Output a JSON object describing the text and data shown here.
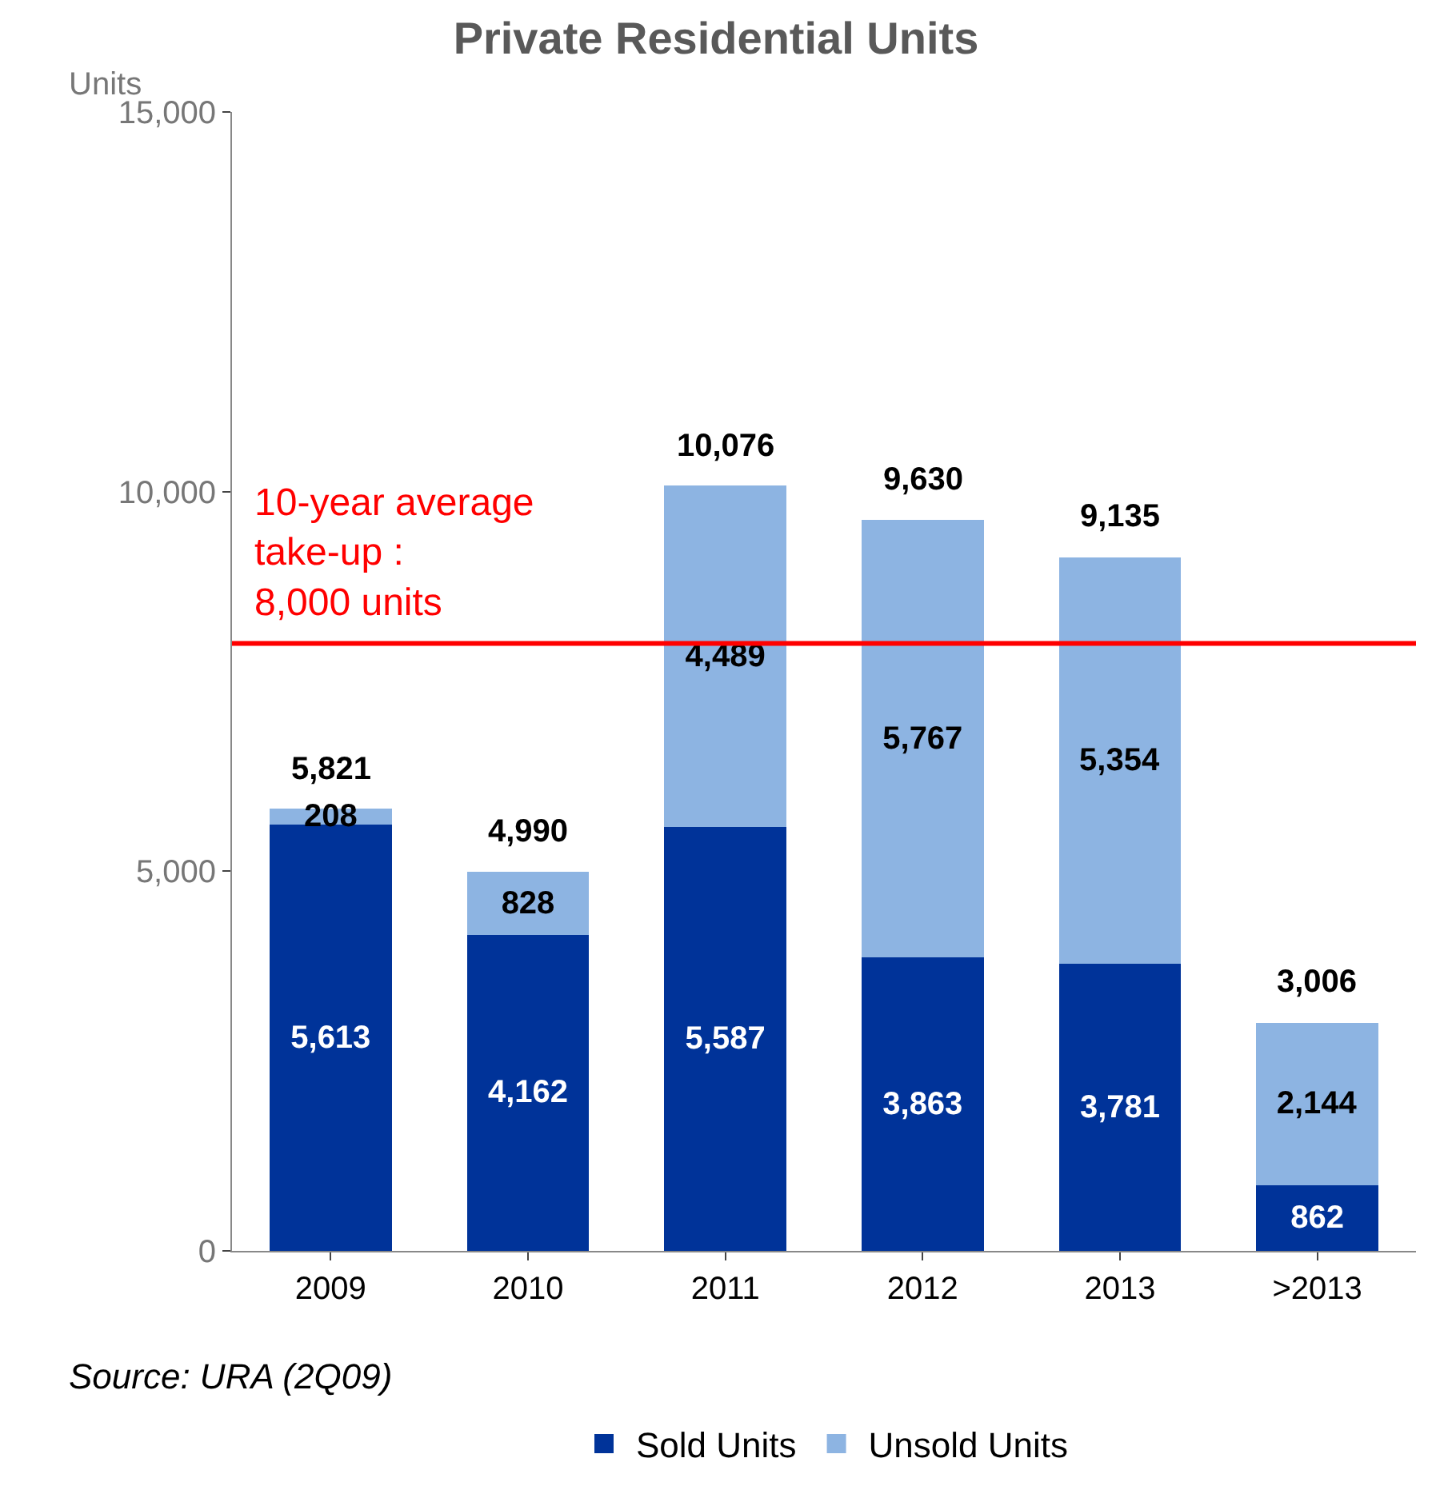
{
  "chart_data": {
    "type": "bar",
    "title": "Private Residential Units",
    "ylabel": "Units",
    "categories": [
      "2009",
      "2010",
      "2011",
      "2012",
      "2013",
      ">2013"
    ],
    "series": [
      {
        "name": "Sold Units",
        "color": "#003399",
        "values": [
          5613,
          4162,
          5587,
          3863,
          3781,
          862
        ],
        "value_labels": [
          "5,613",
          "4,162",
          "5,587",
          "3,863",
          "3,781",
          "862"
        ]
      },
      {
        "name": "Unsold Units",
        "color": "#8db4e2",
        "values": [
          208,
          828,
          4489,
          5767,
          5354,
          2144
        ],
        "value_labels": [
          "208",
          "828",
          "4,489",
          "5,767",
          "5,354",
          "2,144"
        ]
      }
    ],
    "stacked": true,
    "totals": [
      "5,821",
      "4,990",
      "10,076",
      "9,630",
      "9,135",
      "3,006"
    ],
    "ylim": [
      0,
      15000
    ],
    "yticks": [
      {
        "value": 0,
        "label": "0"
      },
      {
        "value": 5000,
        "label": "5,000"
      },
      {
        "value": 10000,
        "label": "10,000"
      },
      {
        "value": 15000,
        "label": "15,000"
      }
    ],
    "ref_lines": [
      {
        "axis": "y",
        "value": 8000,
        "label": "10-year average\ntake-up :\n8,000 units",
        "color": "#ff0000"
      }
    ],
    "annotations": [
      "Source: URA (2Q09)"
    ],
    "legend": "bottom"
  }
}
